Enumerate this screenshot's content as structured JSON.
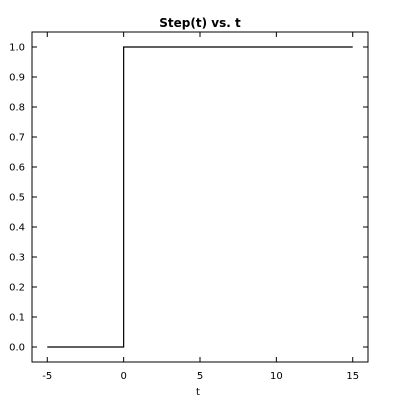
{
  "chart_data": {
    "type": "line",
    "title": "Step(t) vs. t",
    "xlabel": "t",
    "ylabel": "",
    "xlim": [
      -6,
      16
    ],
    "ylim": [
      -0.05,
      1.05
    ],
    "x_ticks": [
      -5,
      0,
      5,
      10,
      15
    ],
    "x_tick_labels": [
      "-5",
      "0",
      "5",
      "10",
      "15"
    ],
    "y_ticks": [
      0.0,
      0.1,
      0.2,
      0.3,
      0.4,
      0.5,
      0.6,
      0.7,
      0.8,
      0.9,
      1.0
    ],
    "y_tick_labels": [
      "0.0",
      "0.1",
      "0.2",
      "0.3",
      "0.4",
      "0.5",
      "0.6",
      "0.7",
      "0.8",
      "0.9",
      "1.0"
    ],
    "grid": false,
    "series": [
      {
        "x": [
          -5,
          0,
          0,
          15
        ],
        "y": [
          0,
          0,
          1,
          1
        ],
        "color": "#000000"
      }
    ]
  }
}
